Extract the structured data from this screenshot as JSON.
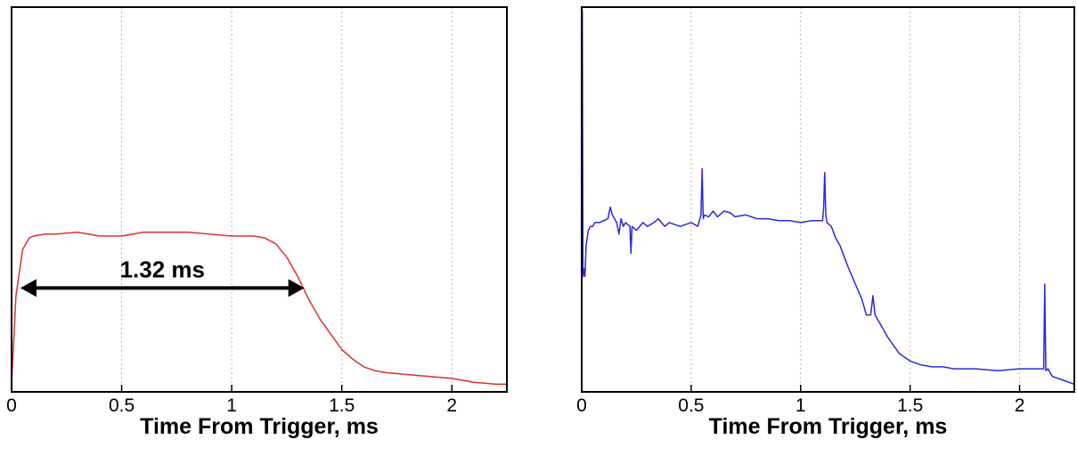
{
  "chart_data": [
    {
      "type": "line",
      "xlabel": "Time From Trigger, ms",
      "xlim": [
        0,
        2.25
      ],
      "ylim": [
        0,
        1
      ],
      "x_ticks": [
        "0",
        "0.5",
        "1",
        "1.5",
        "2"
      ],
      "x_tick_values": [
        0,
        0.5,
        1,
        1.5,
        2
      ],
      "grid": "vertical dotted",
      "series": [
        {
          "color": "#e0302a",
          "x": [
            0,
            0.02,
            0.05,
            0.08,
            0.1,
            0.15,
            0.2,
            0.3,
            0.4,
            0.5,
            0.6,
            0.7,
            0.8,
            0.9,
            1.0,
            1.05,
            1.1,
            1.15,
            1.2,
            1.25,
            1.3,
            1.35,
            1.4,
            1.45,
            1.5,
            1.55,
            1.6,
            1.65,
            1.7,
            1.8,
            1.9,
            2.0,
            2.1,
            2.2,
            2.25
          ],
          "y": [
            0.02,
            0.25,
            0.37,
            0.4,
            0.405,
            0.41,
            0.41,
            0.415,
            0.405,
            0.405,
            0.415,
            0.415,
            0.415,
            0.41,
            0.405,
            0.405,
            0.405,
            0.4,
            0.385,
            0.35,
            0.3,
            0.24,
            0.19,
            0.15,
            0.11,
            0.085,
            0.065,
            0.055,
            0.05,
            0.045,
            0.04,
            0.035,
            0.025,
            0.02,
            0.02
          ]
        }
      ],
      "annotations": [
        {
          "text": "1.32 ms",
          "x_start": 0.04,
          "x_end": 1.33,
          "y": 0.27
        }
      ]
    },
    {
      "type": "line",
      "xlabel": "Time From Trigger, ms",
      "xlim": [
        0,
        2.25
      ],
      "ylim": [
        0,
        1
      ],
      "x_ticks": [
        "0",
        "0.5",
        "1",
        "1.5",
        "2"
      ],
      "x_tick_values": [
        0,
        0.5,
        1,
        1.5,
        2
      ],
      "grid": "vertical dotted",
      "series": [
        {
          "color": "#2a2ae0",
          "x": [
            0,
            0.003,
            0.006,
            0.01,
            0.015,
            0.02,
            0.03,
            0.04,
            0.05,
            0.06,
            0.08,
            0.1,
            0.12,
            0.13,
            0.14,
            0.15,
            0.16,
            0.17,
            0.18,
            0.19,
            0.2,
            0.22,
            0.225,
            0.23,
            0.25,
            0.28,
            0.3,
            0.33,
            0.35,
            0.38,
            0.4,
            0.45,
            0.5,
            0.53,
            0.545,
            0.55,
            0.555,
            0.56,
            0.58,
            0.6,
            0.62,
            0.65,
            0.68,
            0.7,
            0.75,
            0.8,
            0.85,
            0.9,
            0.95,
            1.0,
            1.05,
            1.1,
            1.105,
            1.11,
            1.115,
            1.12,
            1.14,
            1.16,
            1.18,
            1.2,
            1.22,
            1.25,
            1.28,
            1.3,
            1.32,
            1.33,
            1.34,
            1.36,
            1.4,
            1.45,
            1.5,
            1.55,
            1.6,
            1.65,
            1.7,
            1.8,
            1.9,
            2.0,
            2.05,
            2.1,
            2.11,
            2.115,
            2.12,
            2.13,
            2.15,
            2.2,
            2.25
          ],
          "y": [
            0.18,
            0.99,
            0.3,
            0.32,
            0.3,
            0.38,
            0.42,
            0.43,
            0.43,
            0.44,
            0.44,
            0.445,
            0.45,
            0.48,
            0.46,
            0.45,
            0.44,
            0.41,
            0.45,
            0.43,
            0.44,
            0.43,
            0.36,
            0.43,
            0.42,
            0.44,
            0.43,
            0.44,
            0.45,
            0.43,
            0.44,
            0.43,
            0.44,
            0.43,
            0.46,
            0.58,
            0.45,
            0.46,
            0.455,
            0.47,
            0.455,
            0.47,
            0.465,
            0.455,
            0.46,
            0.45,
            0.45,
            0.445,
            0.445,
            0.44,
            0.445,
            0.445,
            0.48,
            0.57,
            0.46,
            0.44,
            0.43,
            0.4,
            0.38,
            0.35,
            0.32,
            0.28,
            0.24,
            0.2,
            0.2,
            0.25,
            0.2,
            0.18,
            0.14,
            0.1,
            0.08,
            0.07,
            0.065,
            0.065,
            0.06,
            0.06,
            0.055,
            0.06,
            0.06,
            0.06,
            0.06,
            0.28,
            0.055,
            0.06,
            0.04,
            0.03,
            0.02
          ]
        }
      ]
    }
  ]
}
